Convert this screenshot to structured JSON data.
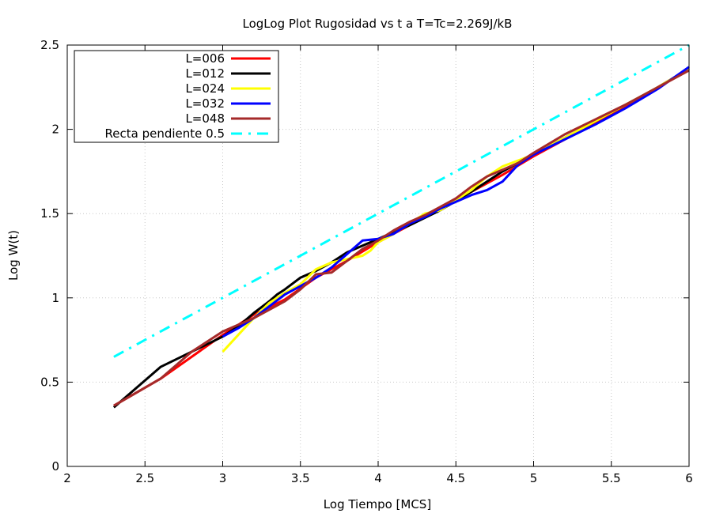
{
  "chart_data": {
    "type": "line",
    "title": "LogLog Plot Rugosidad vs t a T=Tc=2.269J/kB",
    "xlabel": "Log Tiempo [MCS]",
    "ylabel": "Log W(t)",
    "xlim": [
      2,
      6
    ],
    "ylim": [
      0,
      2.5
    ],
    "grid": true,
    "legend_position": "top-left",
    "x_ticks": [
      2,
      2.5,
      3,
      3.5,
      4,
      4.5,
      5,
      5.5,
      6
    ],
    "x_tick_labels": [
      "2",
      "2.5",
      "3",
      "3.5",
      "4",
      "4.5",
      "5",
      "5.5",
      "6"
    ],
    "y_ticks": [
      0,
      0.5,
      1,
      1.5,
      2,
      2.5
    ],
    "y_tick_labels": [
      "0",
      "0.5",
      "1",
      "1.5",
      "2",
      "2.5"
    ],
    "series": [
      {
        "name": "L=006",
        "color": "#ff0000",
        "style": "solid",
        "x": [
          2.3,
          2.6,
          3.0,
          3.2,
          3.4,
          3.6,
          3.8,
          4.0,
          4.2,
          4.4,
          4.6,
          4.8,
          5.0,
          5.2,
          5.4,
          5.6,
          5.8,
          6.0
        ],
        "y": [
          0.36,
          0.52,
          0.78,
          0.9,
          0.99,
          1.12,
          1.22,
          1.33,
          1.43,
          1.53,
          1.63,
          1.73,
          1.84,
          1.94,
          2.04,
          2.14,
          2.25,
          2.36
        ]
      },
      {
        "name": "L=012",
        "color": "#000000",
        "style": "solid",
        "x": [
          2.3,
          2.6,
          3.0,
          3.1,
          3.2,
          3.3,
          3.35,
          3.4,
          3.5,
          3.6,
          3.7,
          3.8,
          3.9,
          4.0,
          4.2,
          4.4,
          4.6,
          4.8,
          5.0,
          5.2,
          5.4,
          5.6,
          5.8,
          6.0
        ],
        "y": [
          0.35,
          0.59,
          0.77,
          0.83,
          0.91,
          0.98,
          1.02,
          1.05,
          1.12,
          1.16,
          1.21,
          1.27,
          1.31,
          1.35,
          1.43,
          1.52,
          1.63,
          1.75,
          1.85,
          1.95,
          2.05,
          2.15,
          2.25,
          2.36
        ]
      },
      {
        "name": "L=024",
        "color": "#ffff00",
        "style": "solid",
        "x": [
          3.0,
          3.1,
          3.2,
          3.3,
          3.4,
          3.5,
          3.6,
          3.7,
          3.8,
          3.9,
          3.95,
          4.0,
          4.1,
          4.2,
          4.3,
          4.4,
          4.5,
          4.6,
          4.7,
          4.8,
          5.0,
          5.2,
          5.4,
          5.6,
          5.8,
          6.0
        ],
        "y": [
          0.68,
          0.78,
          0.88,
          0.97,
          1.03,
          1.08,
          1.17,
          1.21,
          1.23,
          1.25,
          1.28,
          1.33,
          1.38,
          1.44,
          1.5,
          1.52,
          1.58,
          1.64,
          1.72,
          1.78,
          1.85,
          1.95,
          2.05,
          2.15,
          2.25,
          2.36
        ]
      },
      {
        "name": "L=032",
        "color": "#0000ff",
        "style": "solid",
        "x": [
          3.0,
          3.1,
          3.2,
          3.3,
          3.4,
          3.5,
          3.6,
          3.7,
          3.8,
          3.9,
          4.0,
          4.1,
          4.2,
          4.3,
          4.4,
          4.5,
          4.6,
          4.7,
          4.8,
          4.9,
          5.0,
          5.2,
          5.4,
          5.6,
          5.8,
          6.0
        ],
        "y": [
          0.77,
          0.82,
          0.88,
          0.95,
          1.02,
          1.07,
          1.12,
          1.18,
          1.26,
          1.34,
          1.35,
          1.38,
          1.44,
          1.48,
          1.53,
          1.57,
          1.61,
          1.64,
          1.69,
          1.79,
          1.85,
          1.94,
          2.03,
          2.13,
          2.24,
          2.37
        ]
      },
      {
        "name": "L=048",
        "color": "#a52a2a",
        "style": "solid",
        "x": [
          2.3,
          2.6,
          2.8,
          3.0,
          3.2,
          3.4,
          3.5,
          3.6,
          3.7,
          3.8,
          3.9,
          4.0,
          4.1,
          4.2,
          4.3,
          4.4,
          4.5,
          4.6,
          4.7,
          4.8,
          4.9,
          5.0,
          5.2,
          5.4,
          5.6,
          5.8,
          6.0
        ],
        "y": [
          0.36,
          0.52,
          0.68,
          0.8,
          0.88,
          0.98,
          1.05,
          1.14,
          1.15,
          1.22,
          1.29,
          1.34,
          1.4,
          1.45,
          1.49,
          1.54,
          1.59,
          1.66,
          1.72,
          1.76,
          1.8,
          1.86,
          1.97,
          2.06,
          2.15,
          2.25,
          2.35
        ]
      },
      {
        "name": "Recta pendiente 0.5",
        "color": "#00ffff",
        "style": "dash-dot",
        "x": [
          2.3,
          6.0
        ],
        "y": [
          0.65,
          2.5
        ]
      }
    ]
  }
}
